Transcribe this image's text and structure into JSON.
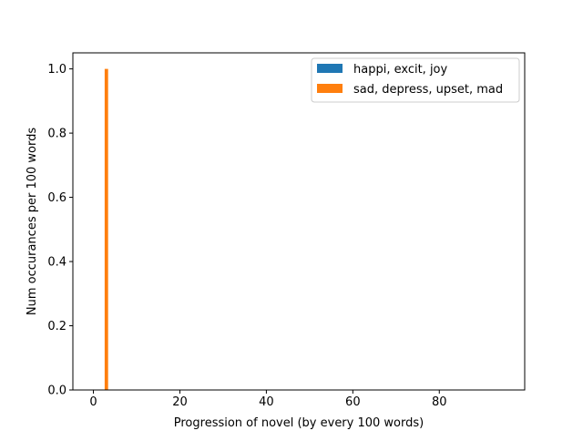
{
  "chart_data": {
    "type": "bar",
    "xlabel": "Progression of novel (by every 100 words)",
    "ylabel": "Num occurances per 100 words",
    "xlim": [
      -4.75,
      99.75
    ],
    "ylim": [
      0,
      1.05
    ],
    "xticks": [
      0,
      20,
      40,
      60,
      80
    ],
    "yticks": [
      0.0,
      0.2,
      0.4,
      0.6,
      0.8,
      1.0
    ],
    "xtick_labels": [
      "0",
      "20",
      "40",
      "60",
      "80"
    ],
    "ytick_labels": [
      "0.0",
      "0.2",
      "0.4",
      "0.6",
      "0.8",
      "1.0"
    ],
    "bar_width": 0.8,
    "grid": false,
    "legend": {
      "placement": "upper-right",
      "entries": [
        "happi, excit, joy",
        "sad, depress, upset, mad"
      ]
    },
    "series": [
      {
        "name": "happi, excit, joy",
        "color": "#1f77b4",
        "x": [],
        "values": []
      },
      {
        "name": "sad, depress, upset, mad",
        "color": "#ff7f0e",
        "x": [
          3
        ],
        "values": [
          1
        ]
      }
    ]
  }
}
